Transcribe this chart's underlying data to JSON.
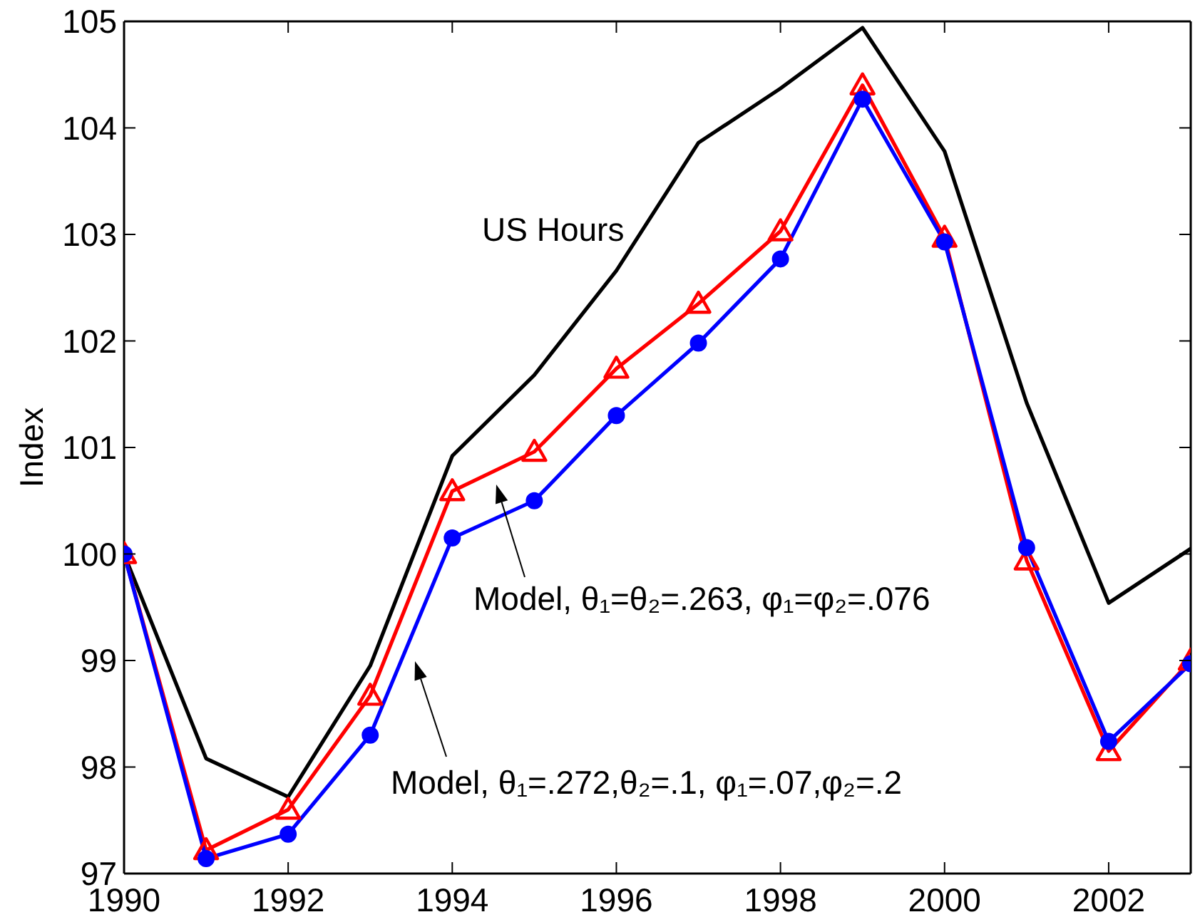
{
  "chart_data": {
    "type": "line",
    "ylabel": "Index",
    "x": [
      1990,
      1991,
      1992,
      1993,
      1994,
      1995,
      1996,
      1997,
      1998,
      1999,
      2000,
      2001,
      2002,
      2003
    ],
    "xlim": [
      1990,
      2003
    ],
    "xticks": [
      1990,
      1992,
      1994,
      1996,
      1998,
      2000,
      2002
    ],
    "ylim": [
      97,
      105
    ],
    "yticks": [
      97,
      98,
      99,
      100,
      101,
      102,
      103,
      104,
      105
    ],
    "line_style": "solid",
    "series": [
      {
        "name": "US Hours",
        "color": "#000000",
        "marker": "none",
        "values": [
          100,
          98.08,
          97.72,
          98.95,
          100.92,
          101.68,
          102.66,
          103.86,
          104.37,
          104.94,
          103.78,
          101.42,
          99.54,
          100.05
        ]
      },
      {
        "color": "#ff0000",
        "marker": "triangle",
        "values": [
          100,
          97.22,
          97.6,
          98.67,
          100.59,
          100.96,
          101.74,
          102.35,
          103.03,
          104.4,
          102.97,
          99.94,
          98.15,
          99.0
        ]
      },
      {
        "color": "#0000ff",
        "marker": "circle",
        "values": [
          100,
          97.14,
          97.37,
          98.3,
          100.15,
          100.5,
          101.3,
          101.98,
          102.77,
          104.27,
          102.93,
          100.06,
          98.24,
          98.97
        ]
      }
    ],
    "annotations": [
      "Model, θ₁=θ₂=.263, φ₁=φ₂=.076",
      "Model, θ₁=.272,θ₂=.1, φ₁=.07,φ₂=.2"
    ]
  }
}
